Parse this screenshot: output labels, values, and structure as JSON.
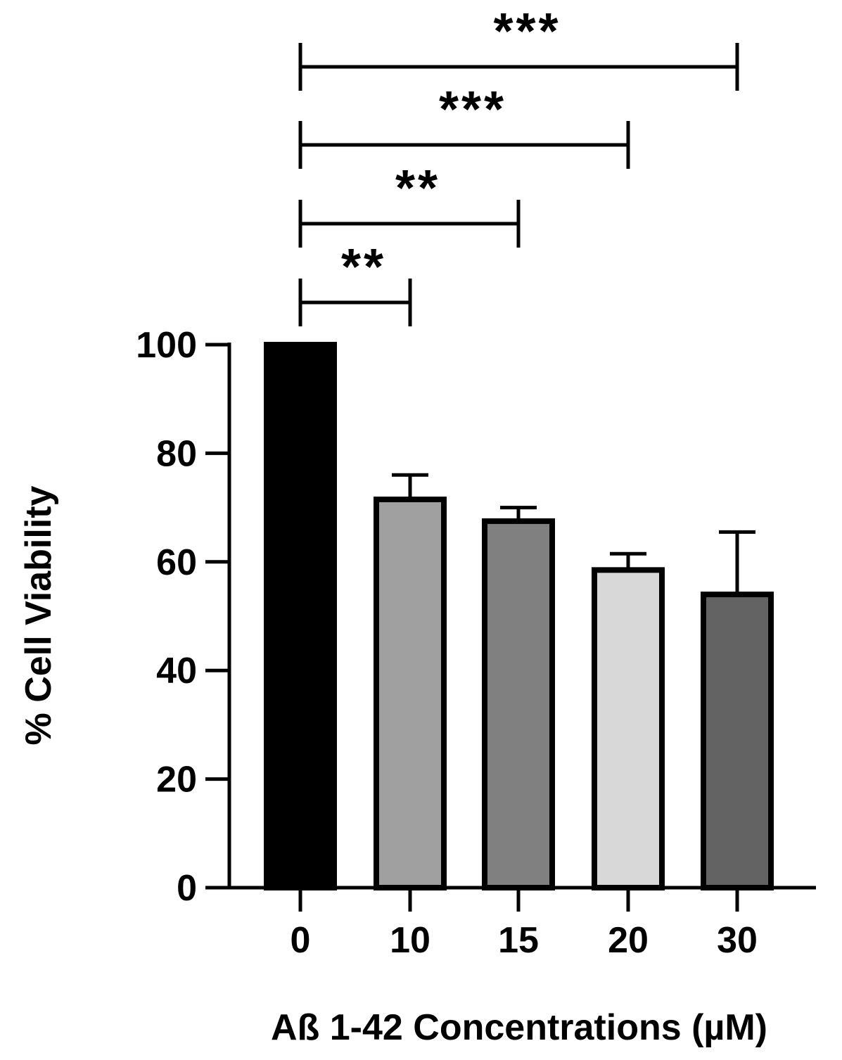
{
  "chart_data": {
    "type": "bar",
    "title": "",
    "xlabel": "Aß 1-42 Concentrations (µM)",
    "ylabel": "% Cell Viability",
    "ylim": [
      0,
      100
    ],
    "yticks": [
      "0",
      "20",
      "40",
      "60",
      "80",
      "100"
    ],
    "grid": false,
    "categories": [
      "0",
      "10",
      "15",
      "20",
      "30"
    ],
    "values": [
      100,
      71.5,
      67.5,
      58.5,
      54
    ],
    "error_upper": [
      0,
      4.5,
      2.5,
      3,
      11.5
    ],
    "bar_colors": [
      "#000000",
      "#a0a0a0",
      "#808080",
      "#d8d8d8",
      "#636363"
    ],
    "significance": [
      {
        "from": "0",
        "to": "10",
        "label": "**"
      },
      {
        "from": "0",
        "to": "15",
        "label": "**"
      },
      {
        "from": "0",
        "to": "20",
        "label": "***"
      },
      {
        "from": "0",
        "to": "30",
        "label": "***"
      }
    ]
  }
}
